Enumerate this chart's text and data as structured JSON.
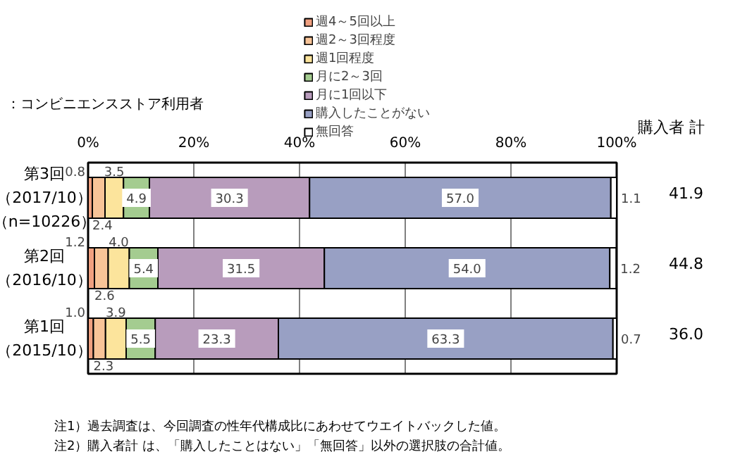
{
  "chart_data": {
    "type": "bar",
    "orientation": "horizontal",
    "stacked": true,
    "subtitle": "：コンビニエンスストア利用者",
    "categories": [
      "第3回（2017/10）（n=10226）",
      "第2回（2016/10）",
      "第1回（2015/10）"
    ],
    "series": [
      {
        "name": "週4～5回以上",
        "color": "#f0a080",
        "values": [
          0.8,
          1.2,
          1.0
        ],
        "value_labels": [
          "0.8",
          "1.2",
          "1.0"
        ]
      },
      {
        "name": "週2～3回程度",
        "color": "#f8c498",
        "values": [
          2.4,
          2.6,
          2.3
        ],
        "value_labels": [
          "2.4",
          "2.6",
          "2.3"
        ]
      },
      {
        "name": "週1回程度",
        "color": "#fce49c",
        "values": [
          3.5,
          4.0,
          3.9
        ],
        "value_labels": [
          "3.5",
          "4.0",
          "3.9"
        ]
      },
      {
        "name": "月に2～3回",
        "color": "#a4cc90",
        "values": [
          4.9,
          5.4,
          5.5
        ],
        "value_labels": [
          "4.9",
          "5.4",
          "5.5"
        ]
      },
      {
        "name": "月に1回以下",
        "color": "#b89cbc",
        "values": [
          30.3,
          31.5,
          23.3
        ],
        "value_labels": [
          "30.3",
          "31.5",
          "23.3"
        ]
      },
      {
        "name": "購入したことがない",
        "color": "#98a0c4",
        "values": [
          57.0,
          54.0,
          63.3
        ],
        "value_labels": [
          "57.0",
          "54.0",
          "63.3"
        ]
      },
      {
        "name": "無回答",
        "color": "#ffffff",
        "values": [
          1.1,
          1.2,
          0.7
        ],
        "value_labels": [
          "1.1",
          "1.2",
          "0.7"
        ]
      }
    ],
    "xlim": [
      0,
      100
    ],
    "xticks": [
      {
        "value": 0,
        "label": "0%"
      },
      {
        "value": 20,
        "label": "20%"
      },
      {
        "value": 40,
        "label": "40%"
      },
      {
        "value": 60,
        "label": "60%"
      },
      {
        "value": 80,
        "label": "80%"
      },
      {
        "value": 100,
        "label": "100%"
      }
    ],
    "grid": "x",
    "legend": "top",
    "annotations": [
      "購入者 計",
      "41.9",
      "44.8",
      "36.0",
      "注1）過去調査は、今回調査の性年代構成比にあわせてウエイトバックした値。",
      "注2）購入者計 は、「購入したことはない」「無回答」以外の選択肢の合計値。"
    ]
  }
}
